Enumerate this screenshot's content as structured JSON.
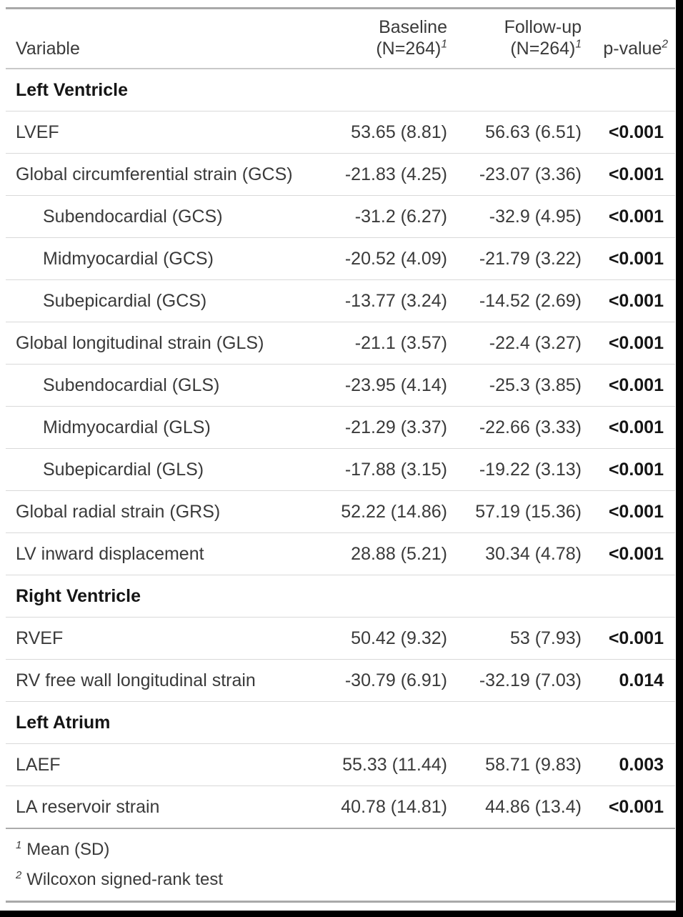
{
  "colors": {
    "background": "#ffffff",
    "text": "#3a3a3a",
    "emphasis": "#151515",
    "rule_light": "#d9d9d9",
    "rule_dark": "#a9a9a9",
    "screen_frame": "#000000"
  },
  "table": {
    "header": {
      "variable": "Variable",
      "baseline_line1": "Baseline",
      "baseline_line2": "(N=264)",
      "baseline_mark": "1",
      "followup_line1": "Follow-up",
      "followup_line2": "(N=264)",
      "followup_mark": "1",
      "pvalue": "p-value",
      "pvalue_mark": "2"
    },
    "rows": [
      {
        "type": "section",
        "label": "Left Ventricle"
      },
      {
        "type": "data",
        "label": "LVEF",
        "indent": false,
        "baseline": "53.65 (8.81)",
        "followup": "56.63 (6.51)",
        "pvalue": "<0.001"
      },
      {
        "type": "data",
        "label": "Global circumferential strain (GCS)",
        "indent": false,
        "baseline": "-21.83 (4.25)",
        "followup": "-23.07 (3.36)",
        "pvalue": "<0.001"
      },
      {
        "type": "data",
        "label": "Subendocardial (GCS)",
        "indent": true,
        "baseline": "-31.2 (6.27)",
        "followup": "-32.9 (4.95)",
        "pvalue": "<0.001"
      },
      {
        "type": "data",
        "label": "Midmyocardial (GCS)",
        "indent": true,
        "baseline": "-20.52 (4.09)",
        "followup": "-21.79 (3.22)",
        "pvalue": "<0.001"
      },
      {
        "type": "data",
        "label": "Subepicardial (GCS)",
        "indent": true,
        "baseline": "-13.77 (3.24)",
        "followup": "-14.52 (2.69)",
        "pvalue": "<0.001"
      },
      {
        "type": "data",
        "label": "Global longitudinal strain (GLS)",
        "indent": false,
        "baseline": "-21.1 (3.57)",
        "followup": "-22.4 (3.27)",
        "pvalue": "<0.001"
      },
      {
        "type": "data",
        "label": "Subendocardial (GLS)",
        "indent": true,
        "baseline": "-23.95 (4.14)",
        "followup": "-25.3 (3.85)",
        "pvalue": "<0.001"
      },
      {
        "type": "data",
        "label": "Midmyocardial (GLS)",
        "indent": true,
        "baseline": "-21.29 (3.37)",
        "followup": "-22.66 (3.33)",
        "pvalue": "<0.001"
      },
      {
        "type": "data",
        "label": "Subepicardial (GLS)",
        "indent": true,
        "baseline": "-17.88 (3.15)",
        "followup": "-19.22 (3.13)",
        "pvalue": "<0.001"
      },
      {
        "type": "data",
        "label": "Global radial strain (GRS)",
        "indent": false,
        "baseline": "52.22 (14.86)",
        "followup": "57.19 (15.36)",
        "pvalue": "<0.001"
      },
      {
        "type": "data",
        "label": "LV inward displacement",
        "indent": false,
        "baseline": "28.88 (5.21)",
        "followup": "30.34 (4.78)",
        "pvalue": "<0.001"
      },
      {
        "type": "section",
        "label": "Right Ventricle"
      },
      {
        "type": "data",
        "label": "RVEF",
        "indent": false,
        "baseline": "50.42 (9.32)",
        "followup": "53 (7.93)",
        "pvalue": "<0.001"
      },
      {
        "type": "data",
        "label": "RV free wall longitudinal strain",
        "indent": false,
        "baseline": "-30.79 (6.91)",
        "followup": "-32.19 (7.03)",
        "pvalue": "0.014"
      },
      {
        "type": "section",
        "label": "Left Atrium"
      },
      {
        "type": "data",
        "label": "LAEF",
        "indent": false,
        "baseline": "55.33 (11.44)",
        "followup": "58.71 (9.83)",
        "pvalue": "0.003"
      },
      {
        "type": "data",
        "label": "LA reservoir strain",
        "indent": false,
        "baseline": "40.78 (14.81)",
        "followup": "44.86 (13.4)",
        "pvalue": "<0.001"
      }
    ],
    "footnotes": [
      {
        "mark": "1",
        "text": "Mean (SD)"
      },
      {
        "mark": "2",
        "text": "Wilcoxon signed-rank test"
      }
    ]
  }
}
